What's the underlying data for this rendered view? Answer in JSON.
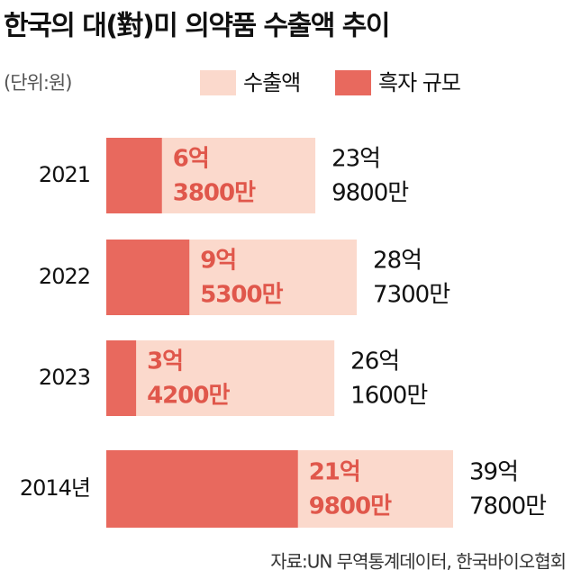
{
  "chart_data": {
    "type": "overlap-hbar",
    "title": "한국의 대(對)미 의약품 수출액 추이",
    "unit": "(단위:원)",
    "categories": [
      "2021",
      "2022",
      "2023",
      "2014년"
    ],
    "series": [
      {
        "name": "수출액",
        "color": "#fbd9cc",
        "values": [
          2398000000,
          2873000000,
          2616000000,
          3978000000
        ],
        "value_labels": [
          [
            "23억",
            "9800만"
          ],
          [
            "28억",
            "7300만"
          ],
          [
            "26억",
            "1600만"
          ],
          [
            "39억",
            "7800만"
          ]
        ]
      },
      {
        "name": "흑자 규모",
        "color": "#e8695e",
        "values": [
          638000000,
          953000000,
          342000000,
          2198000000
        ],
        "value_labels": [
          [
            "6억",
            "3800만"
          ],
          [
            "9억",
            "5300만"
          ],
          [
            "3억",
            "4200만"
          ],
          [
            "21억",
            "9800만"
          ]
        ]
      }
    ],
    "source": "자료:UN 무역통계데이터, 한국바이오협회"
  }
}
